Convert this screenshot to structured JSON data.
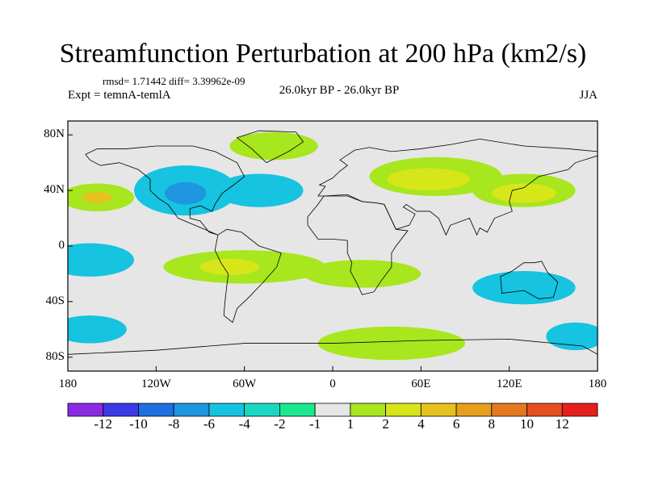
{
  "title": "Streamfunction Perturbation at 200 hPa (km2/s)",
  "stats": "rmsd= 1.71442 diff= 3.39962e-09",
  "experiment": "Expt = temnA-temlA",
  "period": "26.0kyr BP - 26.0kyr BP",
  "season": "JJA",
  "map": {
    "projection": "cylindrical-equidistant",
    "lat_range": [
      -90,
      90
    ],
    "lon_range": [
      -180,
      180
    ],
    "y_ticks": [
      "80N",
      "40N",
      "0",
      "40S",
      "80S"
    ],
    "x_ticks": [
      "180",
      "120W",
      "60W",
      "0",
      "60E",
      "120E",
      "180"
    ]
  },
  "colorbar": {
    "colors": [
      "#8a2be2",
      "#3a3ae6",
      "#1e6fe0",
      "#1e96e0",
      "#16c3e0",
      "#19d8c2",
      "#19e88f",
      "#e6e6e6",
      "#a8e61e",
      "#d6e619",
      "#e6c21e",
      "#e6a01e",
      "#e6781e",
      "#e6501e",
      "#e61e1e"
    ],
    "labels": [
      "-12",
      "-10",
      "-8",
      "-6",
      "-4",
      "-2",
      "-1",
      "1",
      "2",
      "4",
      "6",
      "8",
      "10",
      "12"
    ]
  },
  "regions": [
    {
      "name": "positive-greenland",
      "color": "#a8e61e",
      "blobs": [
        [
          -40,
          72,
          30,
          10
        ]
      ]
    },
    {
      "name": "positive-north-pacific",
      "color": "#a8e61e",
      "blobs": [
        [
          -160,
          35,
          25,
          10
        ]
      ]
    },
    {
      "name": "positive-north-pacific-core",
      "color": "#e6c21e",
      "blobs": [
        [
          -160,
          35,
          10,
          4
        ]
      ]
    },
    {
      "name": "positive-eurasia",
      "color": "#a8e61e",
      "blobs": [
        [
          70,
          50,
          45,
          14
        ],
        [
          130,
          40,
          35,
          12
        ]
      ]
    },
    {
      "name": "positive-eurasia-core",
      "color": "#d6e619",
      "blobs": [
        [
          65,
          48,
          28,
          8
        ],
        [
          130,
          38,
          22,
          7
        ]
      ]
    },
    {
      "name": "negative-north-america",
      "color": "#16c3e0",
      "blobs": [
        [
          -100,
          40,
          35,
          18
        ],
        [
          -50,
          40,
          30,
          12
        ]
      ]
    },
    {
      "name": "negative-north-america-core",
      "color": "#1e96e0",
      "blobs": [
        [
          -100,
          38,
          14,
          8
        ]
      ]
    },
    {
      "name": "negative-south-pacific",
      "color": "#16c3e0",
      "blobs": [
        [
          -165,
          -10,
          30,
          12
        ],
        [
          130,
          -30,
          35,
          12
        ]
      ]
    },
    {
      "name": "positive-south-america",
      "color": "#a8e61e",
      "blobs": [
        [
          -60,
          -15,
          55,
          12
        ],
        [
          20,
          -20,
          40,
          10
        ]
      ]
    },
    {
      "name": "positive-south-america-core",
      "color": "#d6e619",
      "blobs": [
        [
          -70,
          -15,
          20,
          6
        ]
      ]
    },
    {
      "name": "positive-southern-ocean",
      "color": "#a8e61e",
      "blobs": [
        [
          40,
          -70,
          50,
          12
        ]
      ]
    },
    {
      "name": "negative-south-west",
      "color": "#16c3e0",
      "blobs": [
        [
          -165,
          -60,
          25,
          10
        ],
        [
          165,
          -65,
          20,
          10
        ]
      ]
    }
  ]
}
